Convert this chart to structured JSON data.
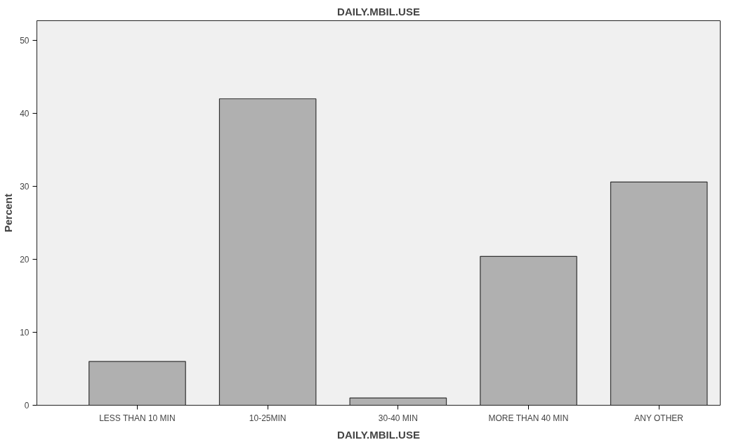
{
  "chart_data": {
    "type": "bar",
    "title": "DAILY.MBIL.USE",
    "xlabel": "DAILY.MBIL.USE",
    "ylabel": "Percent",
    "categories": [
      "LESS THAN 10 MIN",
      "10-25MIN",
      "30-40 MIN",
      "MORE THAN 40 MIN",
      "ANY OTHER"
    ],
    "values": [
      6.0,
      42.0,
      1.0,
      20.4,
      30.6
    ],
    "color": "#b0b0b0",
    "ylim": [
      0,
      52.7
    ],
    "yticks": [
      0,
      10,
      20,
      30,
      40,
      50
    ],
    "grid": false
  }
}
